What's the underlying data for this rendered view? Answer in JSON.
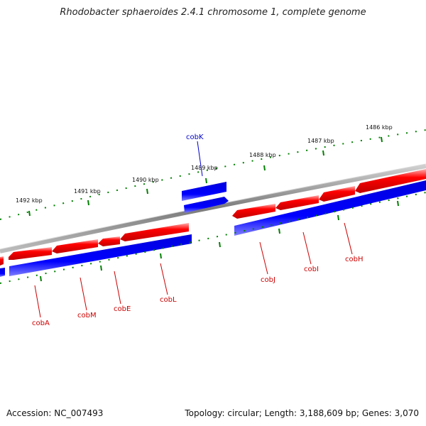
{
  "title": "Rhodobacter sphaeroides 2.4.1 chromosome 1, complete genome",
  "accession": "Accession: NC_007493",
  "topology": "Topology: circular; Length: 3,188,609 bp; Genes: 3,070",
  "colors": {
    "backbone": "#8a8a8a",
    "reverse_feature": "#ff0000",
    "forward_feature": "#0000ff",
    "tick": "#008000",
    "reverse_label": "#cc0000",
    "forward_label": "#0000cc"
  },
  "scale_labels": [
    "1492 kbp",
    "1491 kbp",
    "1490 kbp",
    "1489 kbp",
    "1488 kbp",
    "1487 kbp",
    "1486 kbp"
  ],
  "gene_labels": [
    {
      "name": "cobA",
      "strand": "reverse"
    },
    {
      "name": "cobM",
      "strand": "reverse"
    },
    {
      "name": "cobE",
      "strand": "reverse"
    },
    {
      "name": "cobL",
      "strand": "reverse"
    },
    {
      "name": "cobK",
      "strand": "forward"
    },
    {
      "name": "cobJ",
      "strand": "reverse"
    },
    {
      "name": "cobI",
      "strand": "reverse"
    },
    {
      "name": "cobH",
      "strand": "reverse"
    }
  ]
}
